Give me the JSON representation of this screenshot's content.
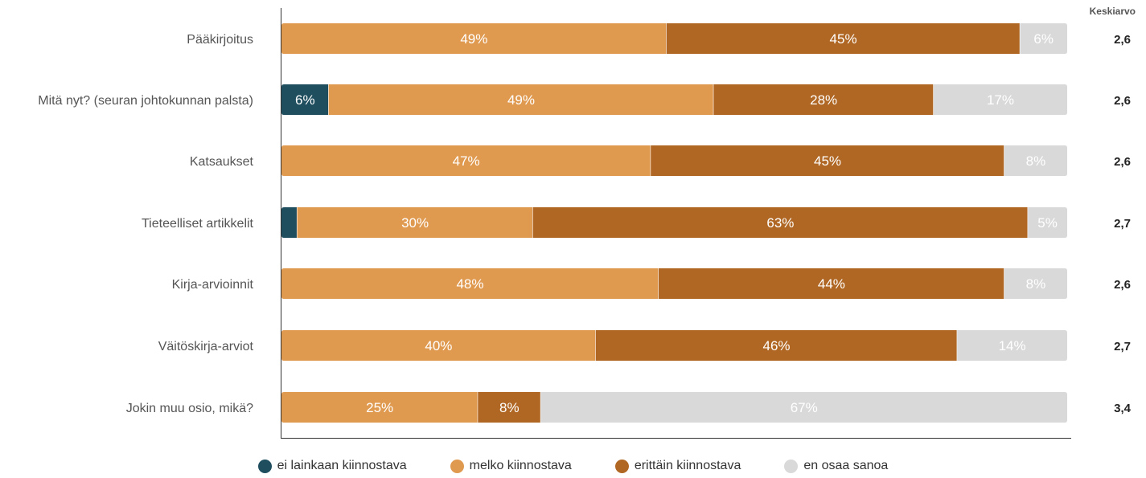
{
  "chart_data": {
    "type": "bar",
    "orientation": "horizontal",
    "stacked": true,
    "xlim": [
      0,
      100
    ],
    "categories": [
      "Pääkirjoitus",
      "Mitä nyt? (seuran johtokunnan palsta)",
      "Katsaukset",
      "Tieteelliset artikkelit",
      "Kirja-arvioinnit",
      "Väitöskirja-arviot",
      "Jokin muu osio, mikä?"
    ],
    "series": [
      {
        "name": "ei lainkaan kiinnostava",
        "color": "#1f4e5f",
        "values": [
          0,
          6,
          0,
          2,
          0,
          0,
          0
        ],
        "labels": [
          "",
          "6%",
          "",
          "",
          "",
          "",
          ""
        ]
      },
      {
        "name": "melko kiinnostava",
        "color": "#e09a50",
        "values": [
          49,
          49,
          47,
          30,
          48,
          40,
          25
        ],
        "labels": [
          "49%",
          "49%",
          "47%",
          "30%",
          "48%",
          "40%",
          "25%"
        ]
      },
      {
        "name": "erittäin kiinnostava",
        "color": "#b06723",
        "values": [
          45,
          28,
          45,
          63,
          44,
          46,
          8
        ],
        "labels": [
          "45%",
          "28%",
          "45%",
          "63%",
          "44%",
          "46%",
          "8%"
        ]
      },
      {
        "name": "en osaa sanoa",
        "color": "#d9d9d9",
        "values": [
          6,
          17,
          8,
          5,
          8,
          14,
          67
        ],
        "labels": [
          "6%",
          "17%",
          "8%",
          "5%",
          "8%",
          "14%",
          "67%"
        ]
      }
    ],
    "mean_header": "Keskiarvo",
    "means": [
      "2,6",
      "2,6",
      "2,6",
      "2,7",
      "2,6",
      "2,7",
      "3,4"
    ],
    "legend_position": "bottom",
    "grid": false
  }
}
